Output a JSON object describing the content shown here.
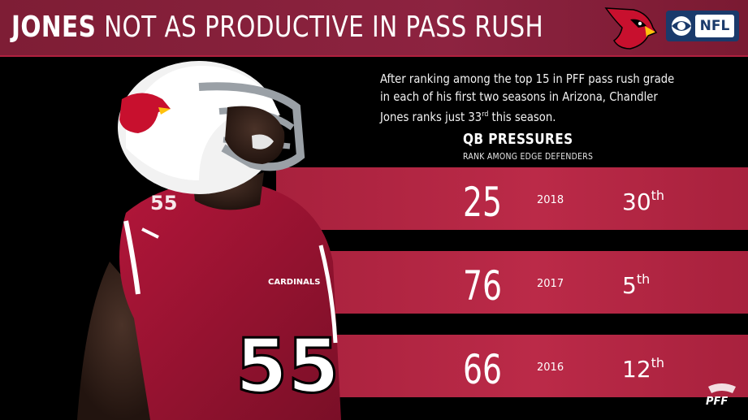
{
  "header": {
    "title_bold": "JONES",
    "title_rest": "NOT AS PRODUCTIVE IN PASS RUSH"
  },
  "logos": {
    "network": "NFL"
  },
  "player": {
    "jersey_word": "CARDINALS",
    "jersey_number": "55"
  },
  "description": {
    "text_before": "After ranking among the top 15 in PFF pass rush grade in each of his first two seasons in Arizona, Chandler Jones ranks just 33",
    "superscript": "rd",
    "text_after": " this season."
  },
  "chart_data": {
    "type": "table",
    "title": "QB PRESSURES",
    "subtitle": "RANK AMONG EDGE DEFENDERS",
    "rows": [
      {
        "pressures": "25",
        "year": "2018",
        "rank": "30",
        "rank_suffix": "th"
      },
      {
        "pressures": "76",
        "year": "2017",
        "rank": "5",
        "rank_suffix": "th"
      },
      {
        "pressures": "66",
        "year": "2016",
        "rank": "12",
        "rank_suffix": "th"
      }
    ]
  },
  "footer": {
    "brand": "PFF"
  },
  "colors": {
    "header_red": "#8d2340",
    "band_red": "#a8213d",
    "band_red_light": "#bb2a48"
  }
}
